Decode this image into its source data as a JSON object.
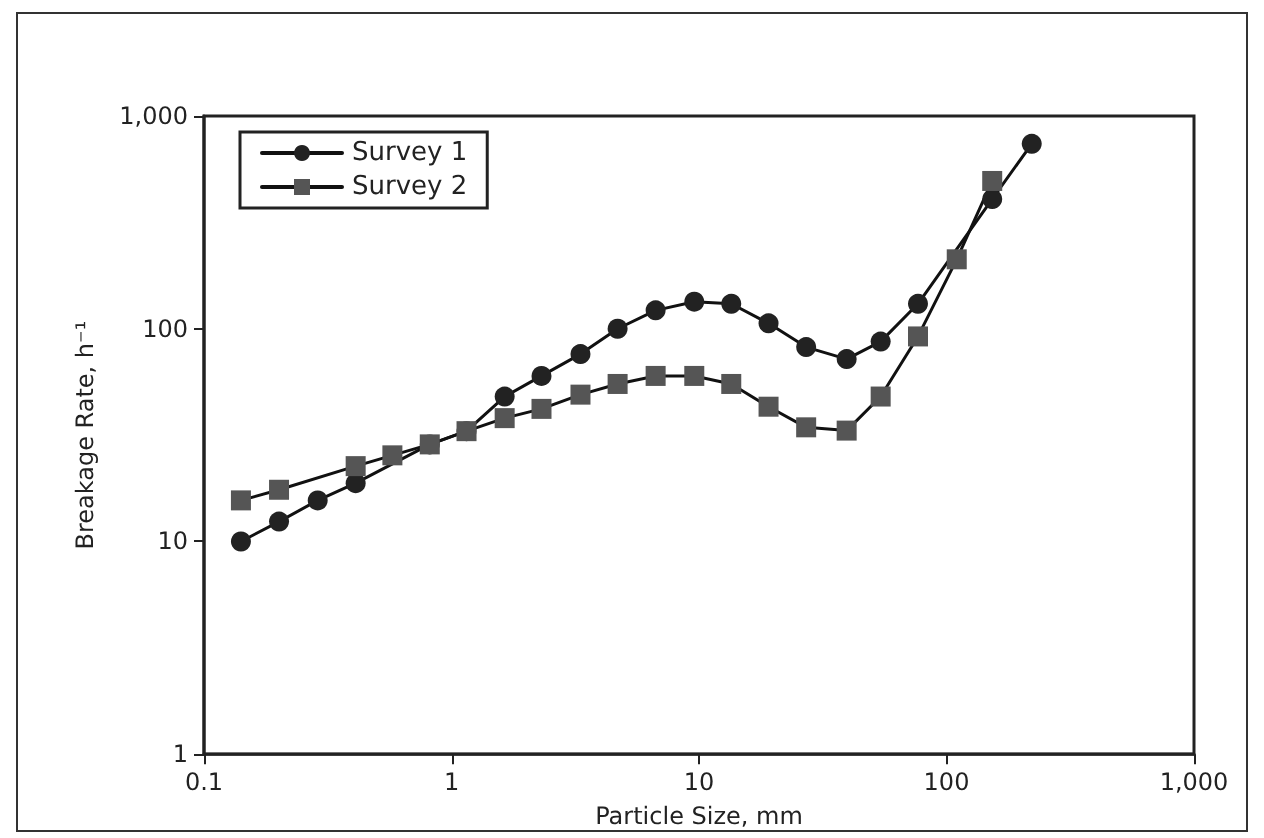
{
  "chart_data": {
    "type": "line",
    "xlabel": "Particle Size, mm",
    "ylabel": "Breakage Rate, h⁻¹",
    "log": "xy",
    "grid": false,
    "legend": "top left",
    "line_style": "solid",
    "xlim": [
      0.1,
      1000
    ],
    "xticks": [
      0.1,
      1,
      10,
      100,
      {
        "value": 1000,
        "label": "1,000"
      }
    ],
    "ylim": [
      1,
      1000
    ],
    "yticks": [
      1,
      10,
      100,
      {
        "value": 1000,
        "label": "1,000"
      }
    ],
    "series": [
      {
        "name": "Survey 1",
        "color": "#222222",
        "marker": "circle",
        "x": [
          0.141,
          0.201,
          0.288,
          0.41,
          0.577,
          0.817,
          1.15,
          1.64,
          2.31,
          3.32,
          4.69,
          6.68,
          9.57,
          13.5,
          19.1,
          27.1,
          39.5,
          54.2,
          76.7,
          153,
          221
        ],
        "values": [
          10,
          12.4,
          15.6,
          18.8,
          null,
          28.6,
          33,
          48,
          60,
          76,
          100,
          122,
          134,
          131,
          106,
          82,
          72,
          87,
          131,
          407,
          740
        ]
      },
      {
        "name": "Survey 2",
        "color": "#555555",
        "marker": "square",
        "x": [
          0.141,
          0.201,
          0.41,
          0.577,
          0.817,
          1.15,
          1.64,
          2.31,
          3.32,
          4.69,
          6.68,
          9.57,
          13.5,
          19.1,
          27.1,
          39.5,
          54.2,
          76.7,
          110,
          153
        ],
        "values": [
          15.6,
          17.5,
          22.6,
          25.4,
          28.6,
          33,
          38,
          42,
          49,
          55,
          60,
          60,
          55,
          43,
          34.4,
          33.2,
          48,
          92,
          212,
          495
        ]
      }
    ]
  }
}
